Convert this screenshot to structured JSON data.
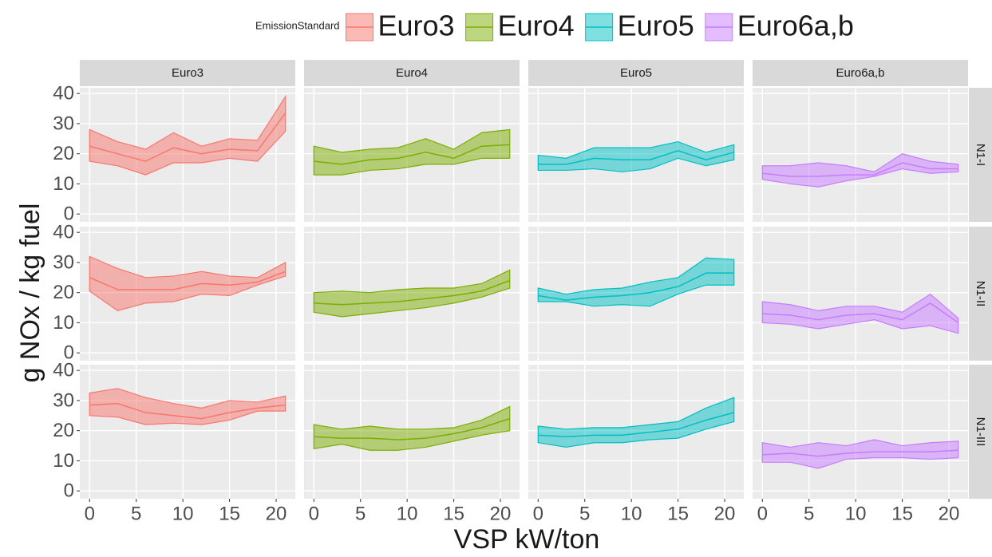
{
  "chart_data": {
    "type": "ribbon",
    "legend_title": "EmissionStandard",
    "x_label": "VSP kW/ton",
    "y_label": "g NOx / kg fuel",
    "x": [
      0,
      3,
      6,
      9,
      12,
      15,
      18,
      21
    ],
    "xlim": [
      -1.05,
      22.05
    ],
    "xticks": [
      0,
      5,
      10,
      15,
      20
    ],
    "ylim": [
      -2.6,
      41.9
    ],
    "yticks": [
      0,
      10,
      20,
      30,
      40
    ],
    "grid": true,
    "legend_position": "top",
    "rows": [
      "N1-I",
      "N1-II",
      "N1-III"
    ],
    "series": [
      {
        "name": "Euro3",
        "color": "#F8766D",
        "panels": [
          {
            "values": [
              22.5,
              20,
              17.5,
              22,
              20,
              21.5,
              21,
              33.5
            ],
            "upper": [
              28,
              24,
              21.5,
              27,
              22.5,
              25,
              24.5,
              39
            ],
            "lower": [
              17.5,
              16,
              13,
              17,
              17,
              18.5,
              17.5,
              27.5
            ]
          },
          {
            "values": [
              25,
              21,
              21,
              21,
              23,
              22.5,
              23.5,
              27
            ],
            "upper": [
              32,
              28,
              25,
              25.5,
              27,
              25.5,
              25,
              30
            ],
            "lower": [
              20.5,
              14,
              16.5,
              17,
              19.5,
              19,
              22.5,
              25.5
            ]
          },
          {
            "values": [
              28.5,
              29,
              26,
              25,
              24,
              26,
              27.5,
              28.5
            ],
            "upper": [
              32.5,
              34,
              31,
              29,
              27.5,
              30,
              29.5,
              31.5
            ],
            "lower": [
              25,
              24.5,
              22,
              22.5,
              22,
              23.5,
              26.5,
              26.5
            ]
          }
        ]
      },
      {
        "name": "Euro4",
        "color": "#7CAE00",
        "panels": [
          {
            "values": [
              17.5,
              16.5,
              18,
              18.5,
              20.5,
              18.5,
              22.5,
              23
            ],
            "upper": [
              22.5,
              20.5,
              21.5,
              22,
              25,
              21.5,
              27,
              28
            ],
            "lower": [
              13,
              13,
              14.5,
              15,
              16.5,
              16.5,
              18.5,
              18.5
            ]
          },
          {
            "values": [
              16.5,
              16,
              16.5,
              17,
              18,
              19,
              20.5,
              24
            ],
            "upper": [
              20,
              20.5,
              20,
              21,
              21.5,
              21.5,
              23,
              27.5
            ],
            "lower": [
              13.5,
              12,
              13,
              14,
              15,
              16.5,
              18.5,
              21.5
            ]
          },
          {
            "values": [
              18,
              17.5,
              17.5,
              17,
              17.5,
              19,
              21,
              24
            ],
            "upper": [
              22,
              20.5,
              21.5,
              20.5,
              20.5,
              21,
              23.5,
              28
            ],
            "lower": [
              14,
              15.5,
              13.5,
              13.5,
              14.5,
              16.5,
              18.5,
              20
            ]
          }
        ]
      },
      {
        "name": "Euro5",
        "color": "#00BFC4",
        "panels": [
          {
            "values": [
              16.5,
              16.5,
              18.5,
              18,
              18,
              21,
              18,
              20.5
            ],
            "upper": [
              19.5,
              18.5,
              22,
              22,
              22,
              24,
              20.5,
              23
            ],
            "lower": [
              14.5,
              14.5,
              15,
              14,
              15,
              18.5,
              16,
              18
            ]
          },
          {
            "values": [
              19,
              17.5,
              18.5,
              19,
              20,
              22,
              26.5,
              26.5
            ],
            "upper": [
              21.5,
              19.5,
              21,
              21.5,
              23.5,
              25,
              31.5,
              31
            ],
            "lower": [
              17,
              17,
              15.5,
              16,
              15.5,
              19.5,
              22.5,
              22.5
            ]
          },
          {
            "values": [
              18.5,
              18,
              18.5,
              18.5,
              19.5,
              20.5,
              23.5,
              26
            ],
            "upper": [
              21.5,
              20.5,
              21,
              21,
              22,
              23,
              27.5,
              31
            ],
            "lower": [
              16,
              14.5,
              16,
              16,
              17,
              17.5,
              20.5,
              23
            ]
          }
        ]
      },
      {
        "name": "Euro6a,b",
        "color": "#C77CFF",
        "panels": [
          {
            "values": [
              13.5,
              12.5,
              12.5,
              13,
              13,
              17,
              15,
              15
            ],
            "upper": [
              16,
              16,
              17,
              16,
              14,
              20,
              17.5,
              16.5
            ],
            "lower": [
              11.5,
              10,
              9,
              11,
              12.5,
              15,
              13.5,
              14
            ]
          },
          {
            "values": [
              13,
              12.5,
              11,
              12.5,
              13,
              11,
              16.5,
              10
            ],
            "upper": [
              17,
              16,
              14,
              15.5,
              15.5,
              13.5,
              19.5,
              11.5
            ],
            "lower": [
              10,
              9.5,
              8,
              9.5,
              11,
              8,
              9,
              6.5
            ]
          },
          {
            "values": [
              12,
              12.5,
              11.5,
              12.5,
              13,
              13,
              13,
              13.5
            ],
            "upper": [
              16,
              14.5,
              16,
              15,
              17,
              15,
              16,
              16.5
            ],
            "lower": [
              9.5,
              9.5,
              7.5,
              10.5,
              11,
              11,
              10.5,
              11
            ]
          }
        ]
      }
    ]
  }
}
